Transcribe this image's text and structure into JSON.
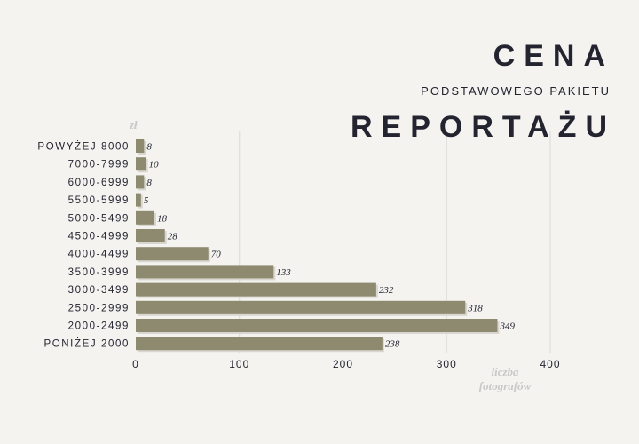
{
  "title": {
    "line1": "CENA",
    "line2": "PODSTAWOWEGO PAKIETU",
    "line3": "REPORTAŻU"
  },
  "colors": {
    "background": "#f4f3f0",
    "bar": "#8e8a70",
    "bar_shadow": "#d8d6ce",
    "grid": "#d9d9d9",
    "text": "#232430",
    "axis_title": "#c8c8c8"
  },
  "chart_data": {
    "type": "bar",
    "orientation": "horizontal",
    "categories": [
      "POWYŻEJ 8000",
      "7000-7999",
      "6000-6999",
      "5500-5999",
      "5000-5499",
      "4500-4999",
      "4000-4499",
      "3500-3999",
      "3000-3499",
      "2500-2999",
      "2000-2499",
      "PONIŻEJ 2000"
    ],
    "values": [
      8,
      10,
      8,
      5,
      18,
      28,
      70,
      133,
      232,
      318,
      349,
      238
    ],
    "value_labels": [
      "8",
      "10",
      "8",
      "5",
      "18",
      "28",
      "70",
      "133",
      "232",
      "318",
      "349",
      "238"
    ],
    "x_ticks": [
      0,
      100,
      200,
      300,
      400
    ],
    "xlim": [
      0,
      400
    ],
    "xlabel_line1": "liczba",
    "xlabel_line2": "fotografów",
    "ylabel": "zł",
    "grid": true
  }
}
